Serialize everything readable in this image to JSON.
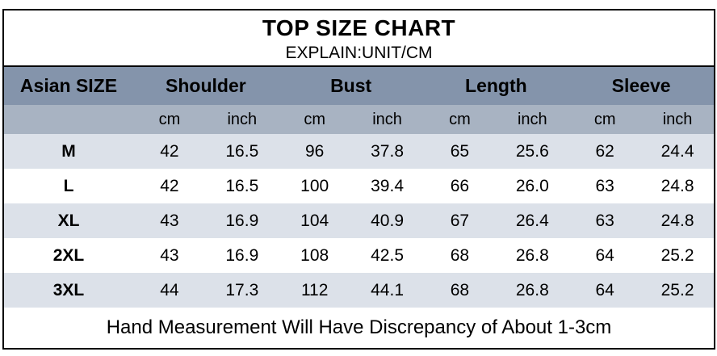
{
  "chart_data": {
    "type": "table",
    "title": "TOP SIZE CHART",
    "subtitle": "EXPLAIN:UNIT/CM",
    "corner_header": "Asian SIZE",
    "group_headers": [
      "Shoulder",
      "Bust",
      "Length",
      "Sleeve"
    ],
    "unit_row": [
      "cm",
      "inch",
      "cm",
      "inch",
      "cm",
      "inch",
      "cm",
      "inch"
    ],
    "rows": [
      {
        "size": "M",
        "values": [
          "42",
          "16.5",
          "96",
          "37.8",
          "65",
          "25.6",
          "62",
          "24.4"
        ]
      },
      {
        "size": "L",
        "values": [
          "42",
          "16.5",
          "100",
          "39.4",
          "66",
          "26.0",
          "63",
          "24.8"
        ]
      },
      {
        "size": "XL",
        "values": [
          "43",
          "16.9",
          "104",
          "40.9",
          "67",
          "26.4",
          "63",
          "24.8"
        ]
      },
      {
        "size": "2XL",
        "values": [
          "43",
          "16.9",
          "108",
          "42.5",
          "68",
          "26.8",
          "64",
          "25.2"
        ]
      },
      {
        "size": "3XL",
        "values": [
          "44",
          "17.3",
          "112",
          "44.1",
          "68",
          "26.8",
          "64",
          "25.2"
        ]
      }
    ],
    "footer_note": "Hand Measurement Will Have Discrepancy of About 1-3cm"
  },
  "colors": {
    "header_bg": "#8494ab",
    "subheader_bg": "#a8b3c2",
    "row_shaded_bg": "#dce1e9",
    "row_white_bg": "#ffffff",
    "border": "#000000",
    "text": "#000000"
  }
}
